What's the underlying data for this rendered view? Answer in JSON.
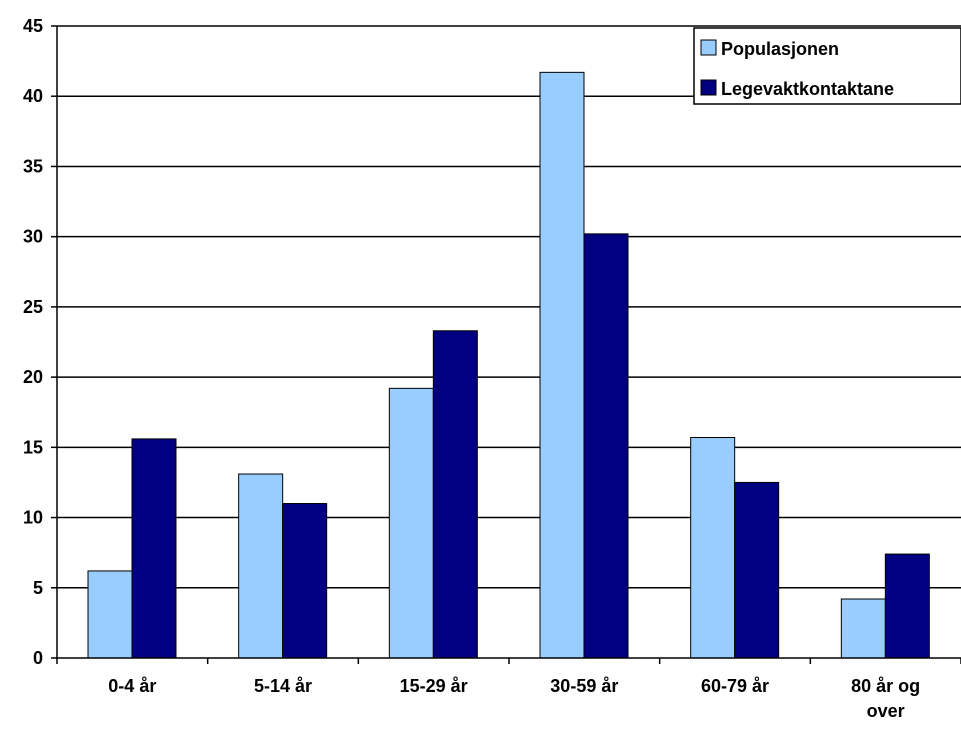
{
  "chart_data": {
    "type": "bar",
    "categories": [
      "0-4 år",
      "5-14 år",
      "15-29 år",
      "30-59 år",
      "60-79 år",
      [
        "80 år og",
        "over"
      ]
    ],
    "series": [
      {
        "name": "Populasjonen",
        "color": "#99ccff",
        "values": [
          6.2,
          13.1,
          19.2,
          41.7,
          15.7,
          4.2
        ]
      },
      {
        "name": "Legevaktkontaktane",
        "color": "#000080",
        "values": [
          15.6,
          11.0,
          23.3,
          30.2,
          12.5,
          7.4
        ]
      }
    ],
    "ylim": [
      0,
      45
    ],
    "yticks": [
      0,
      5,
      10,
      15,
      20,
      25,
      30,
      35,
      40,
      45
    ],
    "grid": true,
    "legend": "top-right",
    "title": "",
    "xlabel": "",
    "ylabel": ""
  }
}
